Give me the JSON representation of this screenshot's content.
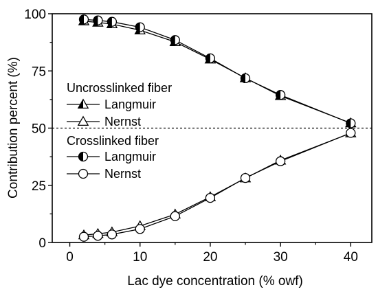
{
  "chart_data": {
    "type": "line",
    "xlabel": "Lac dye concentration (% owf)",
    "ylabel": "Contribution percent (%)",
    "xlim": [
      -2.5,
      43
    ],
    "ylim": [
      0,
      100
    ],
    "xticks": [
      0,
      10,
      20,
      30,
      40
    ],
    "yticks": [
      0,
      25,
      50,
      75,
      100
    ],
    "reference_line": {
      "y": 50,
      "style": "dashed"
    },
    "x": [
      2,
      4,
      6,
      10,
      15,
      20,
      25,
      30,
      40
    ],
    "groups": [
      {
        "title": "Uncrosslinked fiber",
        "series_ids": [
          0,
          1
        ]
      },
      {
        "title": "Crosslinked fiber",
        "series_ids": [
          2,
          3
        ]
      }
    ],
    "series": [
      {
        "name": "Langmuir",
        "group": "Uncrosslinked fiber",
        "marker": "triangle-half",
        "values": [
          96.8,
          96.2,
          95.5,
          92.8,
          87.7,
          80.1,
          71.9,
          64.1,
          52.2
        ]
      },
      {
        "name": "Nernst",
        "group": "Uncrosslinked fiber",
        "marker": "triangle-open",
        "values": [
          3.2,
          3.8,
          4.5,
          7.2,
          12.3,
          19.9,
          28.1,
          35.9,
          47.8
        ]
      },
      {
        "name": "Langmuir",
        "group": "Crosslinked fiber",
        "marker": "circle-half",
        "values": [
          97.5,
          97.1,
          96.5,
          94.1,
          88.5,
          80.5,
          71.8,
          64.5,
          52.1
        ]
      },
      {
        "name": "Nernst",
        "group": "Crosslinked fiber",
        "marker": "circle-open",
        "values": [
          2.5,
          2.9,
          3.5,
          5.9,
          11.5,
          19.5,
          28.2,
          35.5,
          47.9
        ]
      }
    ]
  }
}
